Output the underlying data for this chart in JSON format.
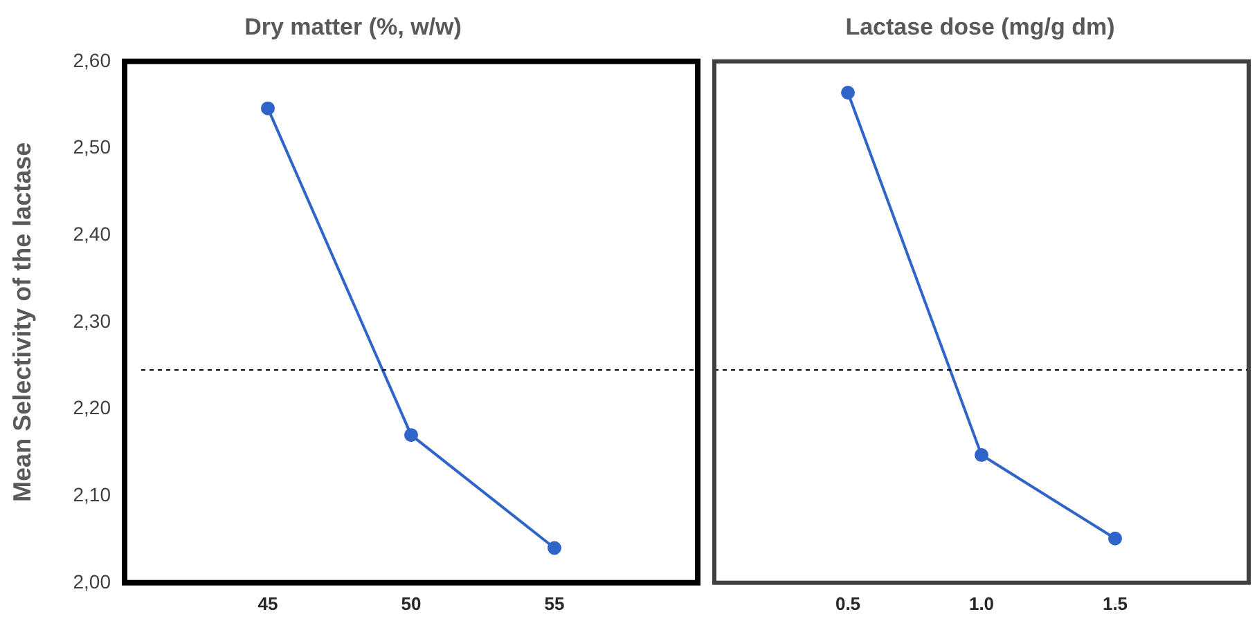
{
  "chart_data": [
    {
      "type": "line",
      "title": "Dry matter (%, w/w)",
      "ylabel": "Mean Selectivity of the lactase",
      "x": [
        45,
        50,
        55
      ],
      "xlim": [
        40,
        60
      ],
      "xticks": [
        45,
        50,
        55
      ],
      "ylim": [
        2.0,
        2.6
      ],
      "yticks": [
        {
          "value": 2.0,
          "label": "2,00"
        },
        {
          "value": 2.1,
          "label": "2,10"
        },
        {
          "value": 2.2,
          "label": "2,20"
        },
        {
          "value": 2.3,
          "label": "2,30"
        },
        {
          "value": 2.4,
          "label": "2,40"
        },
        {
          "value": 2.5,
          "label": "2,50"
        },
        {
          "value": 2.6,
          "label": "2,60"
        }
      ],
      "series": [
        {
          "color": "#2f64c8",
          "values": [
            2.546,
            2.17,
            2.04
          ]
        }
      ],
      "ref_lines": [
        {
          "axis": "y",
          "value": 2.245,
          "color": "#000000",
          "line_style": "dashed"
        }
      ],
      "marker": "circle",
      "grid": false,
      "legend": false
    },
    {
      "type": "line",
      "title": "Lactase dose (mg/g dm)",
      "x": [
        0.5,
        1.0,
        1.5
      ],
      "xlim": [
        0,
        2
      ],
      "xticks": [
        0.5,
        {
          "value": 1,
          "label": "1.0"
        },
        1.5
      ],
      "ylim": [
        2.0,
        2.6
      ],
      "series": [
        {
          "color": "#2f64c8",
          "values": [
            2.564,
            2.147,
            2.051
          ]
        }
      ],
      "ref_lines": [
        {
          "axis": "y",
          "value": 2.245,
          "color": "#000000",
          "line_style": "dashed"
        }
      ],
      "marker": "circle",
      "grid": false,
      "legend": false,
      "tick_labels": "x"
    }
  ]
}
